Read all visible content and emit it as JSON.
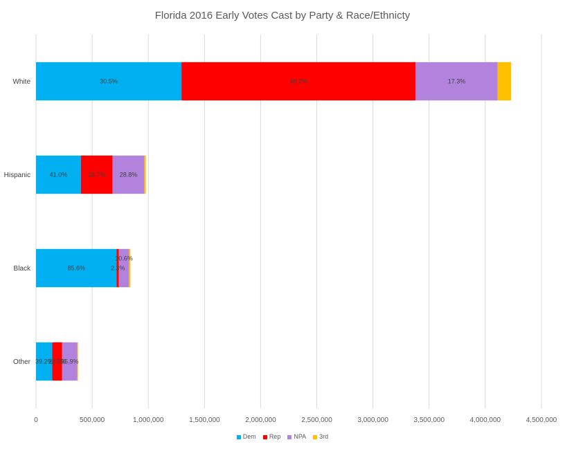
{
  "chart_data": {
    "type": "bar",
    "orientation": "horizontal",
    "stacked": true,
    "title": "Florida 2016 Early Votes Cast by Party & Race/Ethnicty",
    "categories": [
      "White",
      "Hispanic",
      "Black",
      "Other"
    ],
    "series": [
      {
        "name": "Dem",
        "color": "#00b0f0",
        "values": [
          1295000,
          400000,
          718000,
          145000
        ],
        "labels": [
          "30.5%",
          "41.0%",
          "85.6%",
          "39.2%"
        ]
      },
      {
        "name": "Rep",
        "color": "#ff0000",
        "values": [
          2085000,
          282000,
          20000,
          88000
        ],
        "labels": [
          "49.2%",
          "28.7%",
          "2.3%",
          "23.8%"
        ]
      },
      {
        "name": "NPA",
        "color": "#b283dd",
        "values": [
          730000,
          282000,
          90000,
          135000
        ],
        "labels": [
          "17.3%",
          "28.8%",
          "10.6%",
          "35.9%"
        ]
      },
      {
        "name": "3rd",
        "color": "#ffc000",
        "values": [
          120000,
          14000,
          12000,
          6000
        ],
        "labels": [
          "",
          "",
          "",
          ""
        ]
      }
    ],
    "xlim": [
      0,
      4500000
    ],
    "x_ticks": [
      "0",
      "500,000",
      "1,000,000",
      "1,500,000",
      "2,000,000",
      "2,500,000",
      "3,000,000",
      "3,500,000",
      "4,000,000",
      "4,500,000"
    ],
    "grid": true,
    "legend_position": "bottom"
  }
}
